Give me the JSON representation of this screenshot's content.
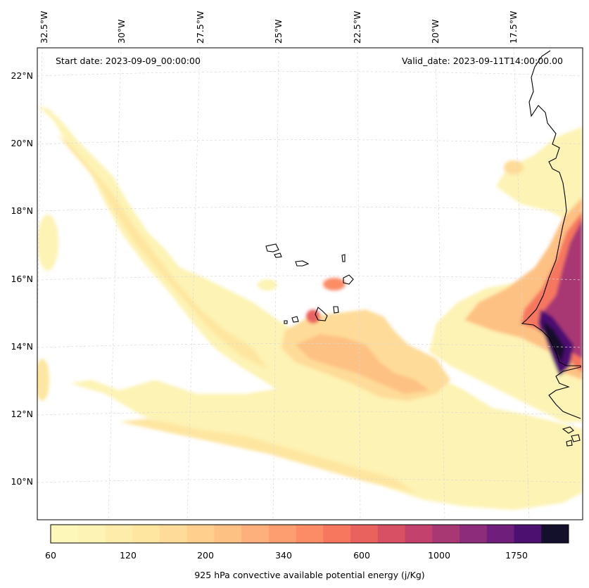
{
  "map": {
    "start_date": "Start date: 2023-09-09_00:00:00",
    "valid_date": "Valid_date: 2023-09-11T14:00:00.00",
    "lon_labels": [
      "32.5°W",
      "30°W",
      "27.5°W",
      "25°W",
      "22.5°W",
      "20°W",
      "17.5°W"
    ],
    "lat_labels": [
      "22°N",
      "20°N",
      "18°N",
      "16°N",
      "14°N",
      "12°N",
      "10°N"
    ]
  },
  "colorbar": {
    "title": "925 hPa convective available potential energy (j/Kg)",
    "tick_labels": [
      "60",
      "120",
      "200",
      "340",
      "600",
      "1000",
      "1750"
    ],
    "colors": [
      "#fdf8ba",
      "#fdf3b4",
      "#feedaa",
      "#fee6a0",
      "#fedb98",
      "#fecf8d",
      "#fdc183",
      "#fdb07b",
      "#fc9e70",
      "#fb8c66",
      "#f6775e",
      "#ea625e",
      "#d85064",
      "#c2426d",
      "#a83873",
      "#8c2c7a",
      "#6f1e7c",
      "#4c1071",
      "#13102c"
    ]
  },
  "icons": {
    "coastline": "coastline-icon"
  },
  "colors": {
    "frame": "#000000",
    "grid": "#d8d8d8",
    "coastline": "#000000"
  }
}
